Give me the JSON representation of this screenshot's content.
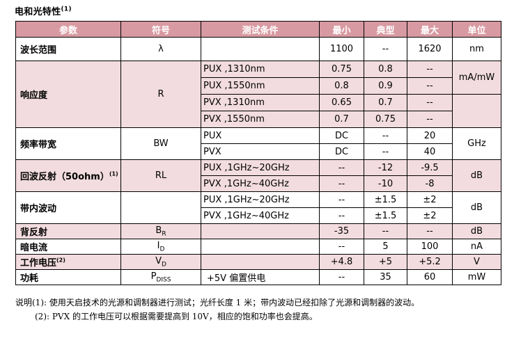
{
  "title": "电和光特性",
  "title_note": "(1)",
  "headers": [
    "参数",
    "符号",
    "测试条件",
    "最小",
    "典型",
    "最大",
    "单位"
  ],
  "rows": {
    "wavelength": {
      "name": "波长范围",
      "symbol": "λ",
      "cond": "",
      "min": "1100",
      "typ": "--",
      "max": "1620",
      "unit": "nm"
    },
    "responsivity": {
      "name": "响应度",
      "symbol": "R",
      "unit": "mA/mW",
      "sub": [
        {
          "cond": "PUX ,1310nm",
          "min": "0.75",
          "typ": "0.8",
          "max": "--"
        },
        {
          "cond": "PUX ,1550nm",
          "min": "0.8",
          "typ": "0.9",
          "max": "--"
        },
        {
          "cond": "PVX ,1310nm",
          "min": "0.65",
          "typ": "0.7",
          "max": "--"
        },
        {
          "cond": "PVX ,1550nm",
          "min": "0.7",
          "typ": "0.75",
          "max": "--"
        }
      ]
    },
    "bandwidth": {
      "name": "频率带宽",
      "symbol": "BW",
      "unit": "GHz",
      "sub": [
        {
          "cond": "PUX",
          "min": "DC",
          "typ": "--",
          "max": "20"
        },
        {
          "cond": "PVX",
          "min": "DC",
          "typ": "--",
          "max": "40"
        }
      ]
    },
    "return_loss": {
      "name": "回波反射（50ohm）",
      "note": "(1)",
      "symbol": "RL",
      "unit": "dB",
      "sub": [
        {
          "cond": "PUX ,1GHz~20GHz",
          "min": "--",
          "typ": "-12",
          "max": "-9.5"
        },
        {
          "cond": "PVX ,1GHz~40GHz",
          "min": "--",
          "typ": "-10",
          "max": "-8"
        }
      ]
    },
    "ripple": {
      "name": "带内波动",
      "symbol": "",
      "unit": "dB",
      "sub": [
        {
          "cond": "PUX ,1GHz~20GHz",
          "min": "--",
          "typ": "±1.5",
          "max": "±2"
        },
        {
          "cond": "PVX ,1GHz~40GHz",
          "min": "--",
          "typ": "±1.5",
          "max": "±2"
        }
      ]
    },
    "back_reflection": {
      "name": "背反射",
      "symbol": "B",
      "symbol_sub": "R",
      "cond": "",
      "min": "-35",
      "typ": "--",
      "max": "--",
      "unit": "dB"
    },
    "dark_current": {
      "name": "暗电流",
      "symbol": "I",
      "symbol_sub": "D",
      "cond": "",
      "min": "--",
      "typ": "5",
      "max": "100",
      "unit": "nA"
    },
    "voltage": {
      "name": "工作电压",
      "note": "(2)",
      "symbol": "V",
      "symbol_sub": "D",
      "cond": "",
      "min": "+4.8",
      "typ": "+5",
      "max": "+5.2",
      "unit": "V"
    },
    "power": {
      "name": "功耗",
      "symbol": "P",
      "symbol_sub": "DISS",
      "cond": "+5V 偏置供电",
      "min": "--",
      "typ": "35",
      "max": "60",
      "unit": "mW"
    }
  },
  "notes": {
    "line1": "说明(1): 使用天启技术的光源和调制器进行测试；光纤长度 1 米；带内波动已经扣除了光源和调制器的波动。",
    "line2": "(2): PVX 的工作电压可以根据需要提高到 10V，相应的饱和功率也会提高。"
  }
}
